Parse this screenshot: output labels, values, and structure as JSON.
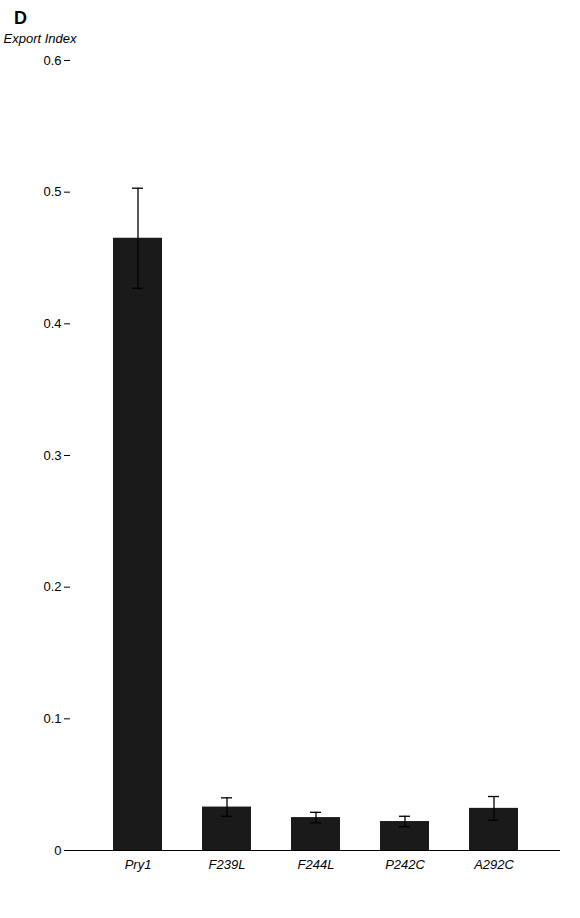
{
  "chart_data": {
    "type": "bar",
    "title": "D",
    "categories": [
      "Pry1",
      "F239L",
      "F244L",
      "P242C",
      "A292C"
    ],
    "values": [
      0.465,
      0.033,
      0.025,
      0.022,
      0.032
    ],
    "errors": [
      0.038,
      0.007,
      0.004,
      0.004,
      0.009
    ],
    "color": "#1a1a1a",
    "ylabel": "Export Index",
    "ylim": [
      0,
      0.6
    ],
    "yticks": [
      0,
      0.1,
      0.2,
      0.3,
      0.4,
      0.5,
      0.6
    ]
  }
}
